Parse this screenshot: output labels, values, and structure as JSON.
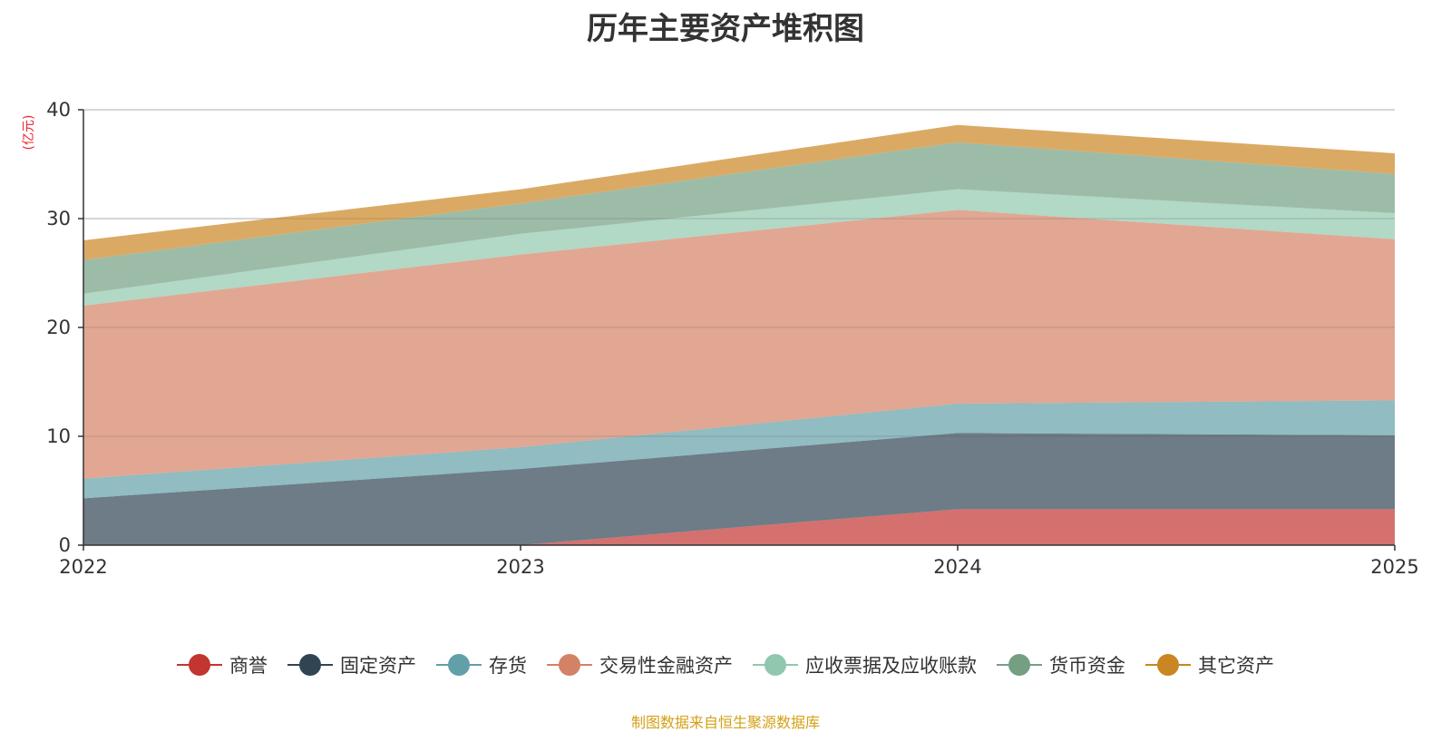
{
  "chart_data": {
    "type": "area",
    "stacked": true,
    "title": "历年主要资产堆积图",
    "unit_label": "(亿元)",
    "x": [
      "2022",
      "2023",
      "2024",
      "2025"
    ],
    "ylim": [
      0,
      40
    ],
    "yticks": [
      "0",
      "10",
      "20",
      "30",
      "40"
    ],
    "grid": true,
    "legend_position": "bottom",
    "series": [
      {
        "name": "商誉",
        "color": "#c23531",
        "values": [
          0,
          0,
          3.3,
          3.3
        ]
      },
      {
        "name": "固定资产",
        "color": "#2f4554",
        "values": [
          4.3,
          7.0,
          7.0,
          6.8
        ]
      },
      {
        "name": "存货",
        "color": "#61a0a8",
        "values": [
          1.8,
          2.0,
          2.7,
          3.2
        ]
      },
      {
        "name": "交易性金融资产",
        "color": "#d48265",
        "values": [
          15.9,
          17.7,
          17.8,
          14.8
        ]
      },
      {
        "name": "应收票据及应收账款",
        "color": "#91c7ae",
        "values": [
          1.1,
          1.9,
          1.9,
          2.4
        ]
      },
      {
        "name": "货币资金",
        "color": "#749f83",
        "values": [
          3.1,
          2.8,
          4.3,
          3.6
        ]
      },
      {
        "name": "其它资产",
        "color": "#ca8622",
        "values": [
          1.8,
          1.3,
          1.6,
          1.9
        ]
      }
    ]
  },
  "source_note": "制图数据来自恒生聚源数据库"
}
